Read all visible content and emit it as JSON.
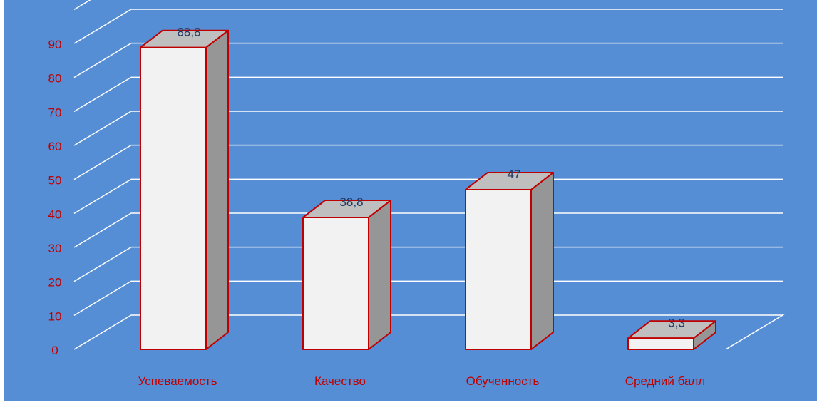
{
  "chart_data": {
    "type": "bar",
    "style": "3d-column",
    "categories": [
      "Успеваемость",
      "Качество",
      "Обученность",
      "Средний балл"
    ],
    "values": [
      88.8,
      38.8,
      47,
      3.3
    ],
    "value_labels": [
      "88,8",
      "38,8",
      "47",
      "3,3"
    ],
    "yticks": [
      "0",
      "10",
      "20",
      "30",
      "40",
      "50",
      "60",
      "70",
      "80",
      "90"
    ],
    "ylim": [
      0,
      100
    ],
    "grid": true,
    "legend": "none",
    "colors": {
      "background": "#558ED5",
      "gridline": "#FFFFFF",
      "bar_front": "#F2F2F2",
      "bar_side": "#969696",
      "bar_top": "#BFBFBF",
      "bar_outline": "#C00000",
      "axis_label": "#C00000",
      "data_label": "#1F3864"
    }
  }
}
